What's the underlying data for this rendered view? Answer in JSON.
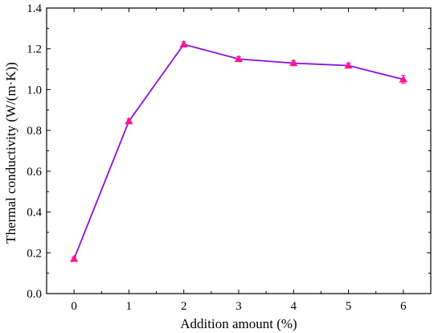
{
  "chart_data": {
    "type": "line",
    "title": "",
    "xlabel": "Addition amount (%)",
    "ylabel": "Thermal conductivity (W/(m·K))",
    "xlim": [
      -0.5,
      6.5
    ],
    "ylim": [
      0.0,
      1.4
    ],
    "xticks": [
      0,
      1,
      2,
      3,
      4,
      5,
      6
    ],
    "xtick_labels": [
      "0",
      "1",
      "2",
      "3",
      "4",
      "5",
      "6"
    ],
    "yticks": [
      0.0,
      0.2,
      0.4,
      0.6,
      0.8,
      1.0,
      1.2,
      1.4
    ],
    "ytick_labels": [
      "0.0",
      "0.2",
      "0.4",
      "0.6",
      "0.8",
      "1.0",
      "1.2",
      "1.4"
    ],
    "grid": false,
    "legend": "none",
    "series": [
      {
        "x": [
          0,
          1,
          2,
          3,
          4,
          5,
          6
        ],
        "y": [
          0.17,
          0.845,
          1.222,
          1.15,
          1.13,
          1.118,
          1.05
        ],
        "error": [
          0.01,
          0.012,
          0.013,
          0.012,
          0.012,
          0.012,
          0.02
        ],
        "line_color": "#8b10d8",
        "marker_color": "#ff1493",
        "marker": "triangle"
      }
    ]
  }
}
